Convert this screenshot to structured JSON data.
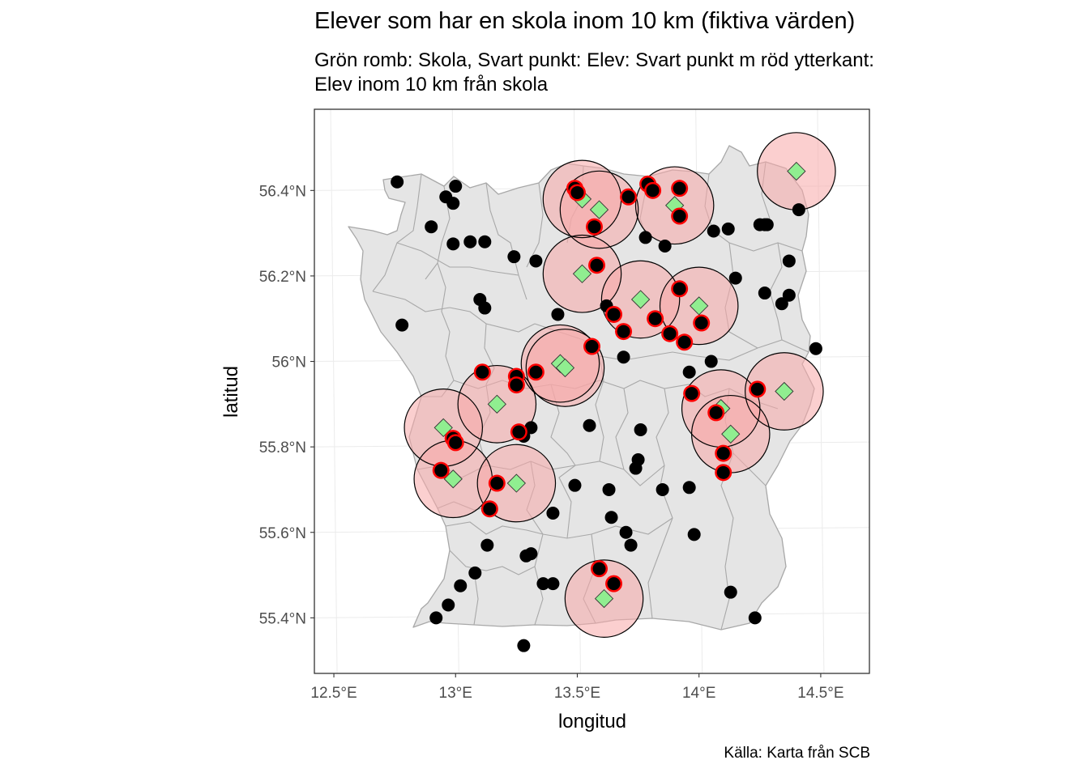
{
  "title": "Elever som har en skola inom 10 km (fiktiva värden)",
  "subtitle_lines": [
    "Grön romb: Skola, Svart punkt: Elev: Svart punkt m röd ytterkant:",
    "Elev inom 10 km från skola"
  ],
  "caption": "Källa: Karta från SCB",
  "colors": {
    "land": "#e5e5e5",
    "border": "#a8a8a8",
    "buffer_fill": "#f8a8a8",
    "school": "#90ee90",
    "student": "#000000",
    "student_near_outline": "#ff0000",
    "grid": "#ebebeb",
    "panel_border": "#333333"
  },
  "chart_data": {
    "type": "scatter",
    "title": "Elever som har en skola inom 10 km (fiktiva värden)",
    "xlabel": "longitud",
    "ylabel": "latitud",
    "x_ticks": [
      {
        "value": 12.5,
        "label": "12.5°E"
      },
      {
        "value": 13.0,
        "label": "13°E"
      },
      {
        "value": 13.5,
        "label": "13.5°E"
      },
      {
        "value": 14.0,
        "label": "14°E"
      },
      {
        "value": 14.5,
        "label": "14.5°E"
      }
    ],
    "y_ticks": [
      {
        "value": 55.4,
        "label": "55.4°N"
      },
      {
        "value": 55.6,
        "label": "55.6°N"
      },
      {
        "value": 55.8,
        "label": "55.8°N"
      },
      {
        "value": 56.0,
        "label": "56°N"
      },
      {
        "value": 56.2,
        "label": "56.2°N"
      },
      {
        "value": 56.4,
        "label": "56.4°N"
      }
    ],
    "xlim": [
      12.42,
      14.7
    ],
    "ylim": [
      55.27,
      56.59
    ],
    "grid": true,
    "buffer_km": 10,
    "series": [
      {
        "role": "schools",
        "marker": "green-diamond",
        "points": [
          [
            14.4,
            56.445
          ],
          [
            13.52,
            56.38
          ],
          [
            13.59,
            56.355
          ],
          [
            13.9,
            56.365
          ],
          [
            13.52,
            56.205
          ],
          [
            13.76,
            56.145
          ],
          [
            14.0,
            56.13
          ],
          [
            13.43,
            55.995
          ],
          [
            13.45,
            55.985
          ],
          [
            13.17,
            55.9
          ],
          [
            12.95,
            55.845
          ],
          [
            12.99,
            55.725
          ],
          [
            13.25,
            55.715
          ],
          [
            14.09,
            55.89
          ],
          [
            14.13,
            55.83
          ],
          [
            14.35,
            55.93
          ],
          [
            13.61,
            55.445
          ]
        ]
      },
      {
        "role": "students-within-10km",
        "marker": "black-dot-red-outline",
        "points": [
          [
            13.49,
            56.405
          ],
          [
            13.5,
            56.395
          ],
          [
            13.71,
            56.385
          ],
          [
            13.79,
            56.415
          ],
          [
            13.81,
            56.4
          ],
          [
            13.92,
            56.405
          ],
          [
            13.92,
            56.34
          ],
          [
            13.57,
            56.315
          ],
          [
            13.58,
            56.225
          ],
          [
            13.92,
            56.17
          ],
          [
            13.65,
            56.11
          ],
          [
            13.69,
            56.07
          ],
          [
            13.82,
            56.1
          ],
          [
            13.88,
            56.065
          ],
          [
            13.94,
            56.045
          ],
          [
            14.01,
            56.09
          ],
          [
            13.56,
            56.035
          ],
          [
            13.11,
            55.975
          ],
          [
            13.25,
            55.965
          ],
          [
            13.25,
            55.945
          ],
          [
            13.33,
            55.975
          ],
          [
            12.99,
            55.82
          ],
          [
            13.0,
            55.81
          ],
          [
            13.26,
            55.835
          ],
          [
            12.94,
            55.745
          ],
          [
            13.17,
            55.715
          ],
          [
            13.14,
            55.655
          ],
          [
            13.97,
            55.925
          ],
          [
            14.07,
            55.88
          ],
          [
            14.24,
            55.935
          ],
          [
            14.1,
            55.785
          ],
          [
            14.1,
            55.74
          ],
          [
            13.59,
            55.515
          ],
          [
            13.65,
            55.48
          ]
        ]
      },
      {
        "role": "students-other",
        "marker": "black-dot",
        "points": [
          [
            12.76,
            56.42
          ],
          [
            12.9,
            56.315
          ],
          [
            12.96,
            56.385
          ],
          [
            12.99,
            56.37
          ],
          [
            12.99,
            56.275
          ],
          [
            13.0,
            56.41
          ],
          [
            13.06,
            56.28
          ],
          [
            13.12,
            56.28
          ],
          [
            12.78,
            56.085
          ],
          [
            13.1,
            56.145
          ],
          [
            13.12,
            56.125
          ],
          [
            13.24,
            56.245
          ],
          [
            13.33,
            56.235
          ],
          [
            13.42,
            56.11
          ],
          [
            13.62,
            56.13
          ],
          [
            13.78,
            56.29
          ],
          [
            13.86,
            56.27
          ],
          [
            14.06,
            56.305
          ],
          [
            14.12,
            56.31
          ],
          [
            14.15,
            56.195
          ],
          [
            14.25,
            56.32
          ],
          [
            14.27,
            56.32
          ],
          [
            14.28,
            56.32
          ],
          [
            14.41,
            56.355
          ],
          [
            14.37,
            56.235
          ],
          [
            14.27,
            56.16
          ],
          [
            14.37,
            56.155
          ],
          [
            14.34,
            56.135
          ],
          [
            14.48,
            56.03
          ],
          [
            13.96,
            55.975
          ],
          [
            14.05,
            56.0
          ],
          [
            13.69,
            56.01
          ],
          [
            13.55,
            55.85
          ],
          [
            13.76,
            55.84
          ],
          [
            13.75,
            55.77
          ],
          [
            13.74,
            55.75
          ],
          [
            13.28,
            55.825
          ],
          [
            13.31,
            55.845
          ],
          [
            13.49,
            55.71
          ],
          [
            13.63,
            55.7
          ],
          [
            13.85,
            55.7
          ],
          [
            13.96,
            55.705
          ],
          [
            13.64,
            55.635
          ],
          [
            13.4,
            55.645
          ],
          [
            13.7,
            55.6
          ],
          [
            13.72,
            55.57
          ],
          [
            13.98,
            55.595
          ],
          [
            13.13,
            55.57
          ],
          [
            13.29,
            55.545
          ],
          [
            13.31,
            55.55
          ],
          [
            13.08,
            55.505
          ],
          [
            13.02,
            55.475
          ],
          [
            13.36,
            55.48
          ],
          [
            13.4,
            55.48
          ],
          [
            12.97,
            55.43
          ],
          [
            12.92,
            55.4
          ],
          [
            14.13,
            55.46
          ],
          [
            14.23,
            55.4
          ],
          [
            13.28,
            55.335
          ]
        ]
      }
    ]
  }
}
